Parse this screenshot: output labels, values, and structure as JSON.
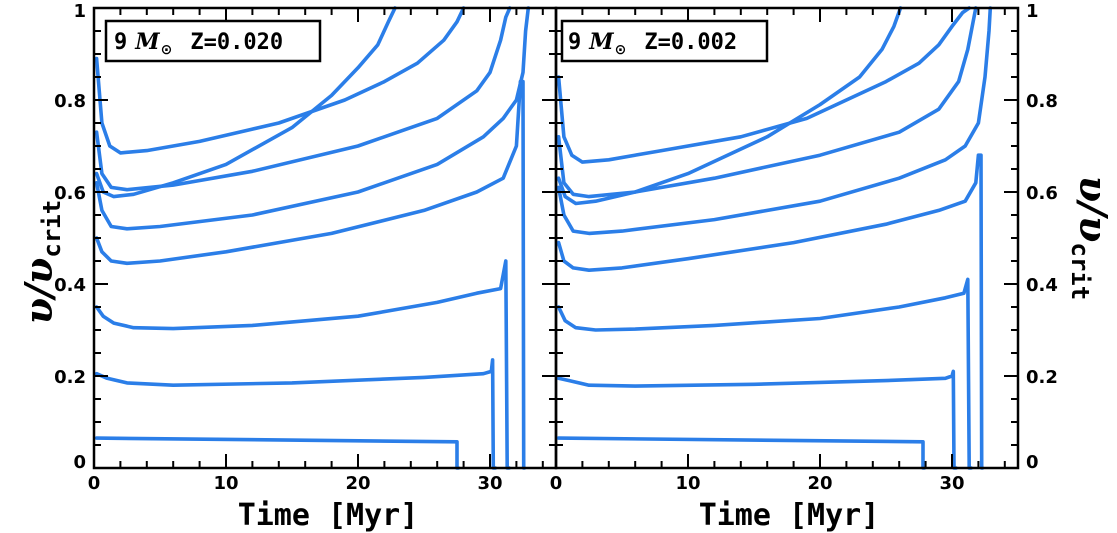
{
  "chart_data": [
    {
      "type": "line",
      "panel": "left",
      "annotation": {
        "mass_value": "9",
        "mass_symbol": "M",
        "sun_symbol": "⊙",
        "z_text": "Z=0.020"
      },
      "xlabel": "Time [Myr]",
      "ylabel": {
        "main": "υ/υ",
        "sub": "crit"
      },
      "xlim": [
        0,
        35
      ],
      "ylim": [
        0,
        1
      ],
      "x_ticks": [
        "0",
        "10",
        "20",
        "30"
      ],
      "y_ticks": [
        "0",
        "0.2",
        "0.4",
        "0.6",
        "0.8",
        "1"
      ],
      "line_color": "#2b7ee8",
      "series": [
        {
          "x": [
            0.2,
            27.5,
            27.5,
            27.6
          ],
          "y": [
            0.065,
            0.057,
            0.0,
            0.0
          ]
        },
        {
          "x": [
            0.2,
            1.0,
            2.5,
            6.0,
            15.0,
            25.0,
            29.5,
            30.1,
            30.2,
            30.25,
            30.4
          ],
          "y": [
            0.205,
            0.195,
            0.185,
            0.18,
            0.185,
            0.197,
            0.205,
            0.21,
            0.235,
            0.0,
            0.0
          ]
        },
        {
          "x": [
            0.2,
            0.7,
            1.5,
            3.0,
            6.0,
            12.0,
            20.0,
            26.0,
            29.0,
            30.8,
            31.2,
            31.3,
            31.45
          ],
          "y": [
            0.35,
            0.33,
            0.315,
            0.305,
            0.303,
            0.31,
            0.33,
            0.36,
            0.38,
            0.39,
            0.45,
            0.0,
            0.0
          ]
        },
        {
          "x": [
            0.2,
            0.6,
            1.3,
            2.5,
            5.0,
            10.0,
            18.0,
            25.0,
            29.0,
            31.0,
            32.0,
            32.3,
            32.5,
            32.55,
            32.6
          ],
          "y": [
            0.5,
            0.47,
            0.45,
            0.445,
            0.45,
            0.47,
            0.51,
            0.56,
            0.6,
            0.63,
            0.7,
            0.84,
            0.84,
            0.0,
            0.0
          ]
        },
        {
          "x": [
            0.2,
            0.6,
            1.3,
            2.5,
            5.0,
            12.0,
            20.0,
            26.0,
            29.5,
            31.0,
            32.0,
            32.5,
            32.7,
            32.9
          ],
          "y": [
            0.62,
            0.56,
            0.525,
            0.52,
            0.525,
            0.55,
            0.6,
            0.66,
            0.72,
            0.76,
            0.8,
            0.86,
            0.95,
            1.0
          ]
        },
        {
          "x": [
            0.2,
            0.6,
            1.3,
            2.5,
            6.0,
            12.0,
            20.0,
            26.0,
            29.0,
            30.0,
            30.8,
            31.2,
            31.5
          ],
          "y": [
            0.73,
            0.64,
            0.61,
            0.605,
            0.615,
            0.645,
            0.7,
            0.76,
            0.82,
            0.86,
            0.93,
            0.98,
            1.0
          ]
        },
        {
          "x": [
            0.2,
            0.6,
            1.2,
            2.0,
            4.0,
            8.0,
            14.0,
            19.0,
            22.0,
            24.5,
            26.5,
            27.5,
            28.0
          ],
          "y": [
            0.89,
            0.75,
            0.7,
            0.685,
            0.69,
            0.71,
            0.75,
            0.8,
            0.84,
            0.88,
            0.93,
            0.97,
            1.0
          ]
        },
        {
          "x": [
            0.2,
            0.7,
            1.5,
            3.0,
            6.0,
            10.0,
            15.0,
            18.0,
            20.0,
            21.5,
            22.3,
            22.8
          ],
          "y": [
            0.64,
            0.6,
            0.59,
            0.595,
            0.62,
            0.66,
            0.74,
            0.81,
            0.87,
            0.92,
            0.97,
            1.0
          ]
        }
      ]
    },
    {
      "type": "line",
      "panel": "right",
      "annotation": {
        "mass_value": "9",
        "mass_symbol": "M",
        "sun_symbol": "⊙",
        "z_text": "Z=0.002"
      },
      "xlabel": "Time [Myr]",
      "ylabel": {
        "main": "υ/υ",
        "sub": "crit"
      },
      "xlim": [
        0,
        35
      ],
      "ylim": [
        0,
        1
      ],
      "x_ticks": [
        "0",
        "10",
        "20",
        "30"
      ],
      "y_ticks": [
        "0",
        "0.2",
        "0.4",
        "0.6",
        "0.8",
        "1"
      ],
      "line_color": "#2b7ee8",
      "series": [
        {
          "x": [
            0.2,
            27.8,
            27.8,
            27.9
          ],
          "y": [
            0.065,
            0.057,
            0.0,
            0.0
          ]
        },
        {
          "x": [
            0.2,
            1.0,
            2.5,
            6.0,
            15.0,
            25.0,
            29.5,
            30.0,
            30.1,
            30.15,
            30.3
          ],
          "y": [
            0.195,
            0.19,
            0.18,
            0.178,
            0.182,
            0.19,
            0.195,
            0.2,
            0.21,
            0.0,
            0.0
          ]
        },
        {
          "x": [
            0.2,
            0.7,
            1.5,
            3.0,
            6.0,
            12.0,
            20.0,
            26.0,
            29.5,
            30.9,
            31.2,
            31.3,
            31.45
          ],
          "y": [
            0.35,
            0.32,
            0.305,
            0.3,
            0.302,
            0.31,
            0.325,
            0.35,
            0.37,
            0.38,
            0.41,
            0.0,
            0.0
          ]
        },
        {
          "x": [
            0.2,
            0.6,
            1.3,
            2.5,
            5.0,
            10.0,
            18.0,
            25.0,
            29.0,
            31.0,
            31.8,
            32.0,
            32.2,
            32.25,
            32.3
          ],
          "y": [
            0.49,
            0.45,
            0.435,
            0.43,
            0.435,
            0.455,
            0.49,
            0.53,
            0.56,
            0.58,
            0.62,
            0.68,
            0.68,
            0.0,
            0.0
          ]
        },
        {
          "x": [
            0.2,
            0.6,
            1.3,
            2.5,
            5.0,
            12.0,
            20.0,
            26.0,
            29.5,
            31.0,
            32.0,
            32.5,
            32.8,
            32.9
          ],
          "y": [
            0.61,
            0.55,
            0.515,
            0.51,
            0.515,
            0.54,
            0.58,
            0.63,
            0.67,
            0.7,
            0.75,
            0.85,
            0.95,
            1.0
          ]
        },
        {
          "x": [
            0.2,
            0.6,
            1.3,
            2.5,
            6.0,
            12.0,
            20.0,
            26.0,
            29.0,
            30.5,
            31.2,
            31.6,
            31.8
          ],
          "y": [
            0.72,
            0.62,
            0.595,
            0.59,
            0.6,
            0.63,
            0.68,
            0.73,
            0.78,
            0.84,
            0.91,
            0.97,
            1.0
          ]
        },
        {
          "x": [
            0.2,
            0.6,
            1.2,
            2.0,
            4.0,
            8.0,
            14.0,
            19.0,
            22.0,
            25.0,
            27.5,
            29.0,
            30.0,
            30.8,
            31.3
          ],
          "y": [
            0.85,
            0.72,
            0.68,
            0.665,
            0.67,
            0.69,
            0.72,
            0.76,
            0.8,
            0.84,
            0.88,
            0.92,
            0.96,
            0.99,
            1.0
          ]
        },
        {
          "x": [
            0.2,
            0.7,
            1.5,
            3.0,
            6.0,
            10.0,
            16.0,
            20.0,
            23.0,
            24.7,
            25.6,
            26.1
          ],
          "y": [
            0.63,
            0.59,
            0.575,
            0.58,
            0.6,
            0.64,
            0.72,
            0.79,
            0.85,
            0.91,
            0.96,
            1.0
          ]
        }
      ]
    }
  ]
}
